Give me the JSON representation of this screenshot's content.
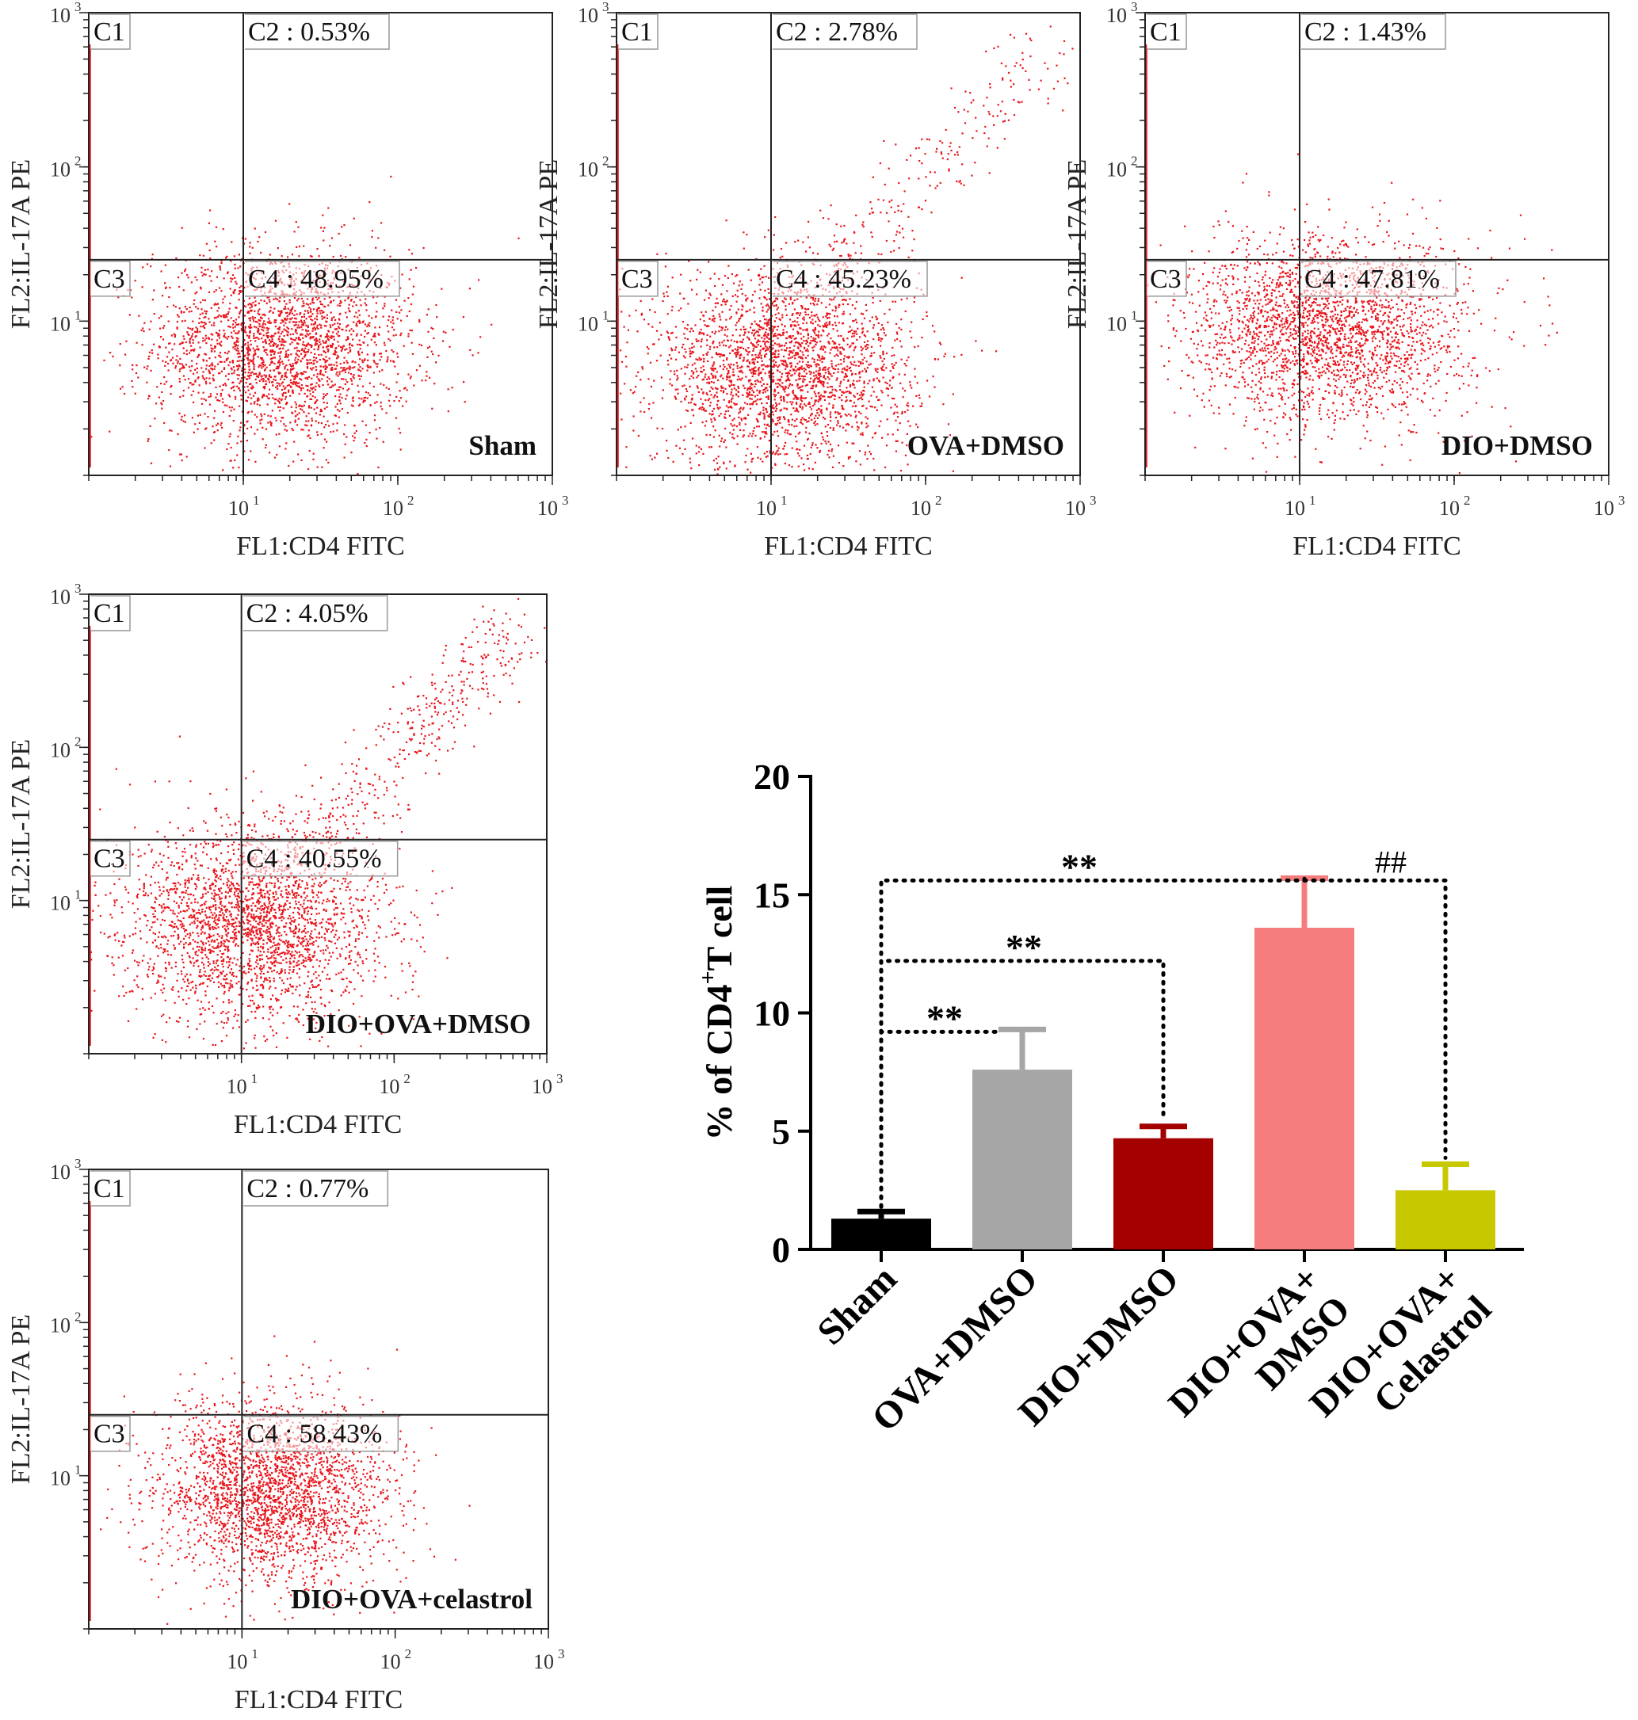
{
  "flow_panels": [
    {
      "name": "panel-sham",
      "group_label": "Sham",
      "quadrants": {
        "c1": "C1",
        "c2": "C2 : 0.53%",
        "c3": "C3",
        "c4": "C4 : 48.95%"
      },
      "x_label": "FL1:CD4 FITC",
      "y_label": "FL2:IL-17A PE",
      "tick_labels": {
        "t1": "10",
        "t2": "10",
        "t3": "10",
        "e1": "1",
        "e2": "2",
        "e3": "3"
      },
      "x_gate": 10,
      "y_gate": 25,
      "cloud": {
        "cx": 18,
        "cy": 7,
        "spread_x": 0.42,
        "spread_y": 0.32,
        "n": 2600
      },
      "diagonal": {
        "n": 0
      }
    },
    {
      "name": "panel-ova-dmso",
      "group_label": "OVA+DMSO",
      "quadrants": {
        "c1": "C1",
        "c2": "C2 : 2.78%",
        "c3": "C3",
        "c4": "C4 : 45.23%"
      },
      "x_label": "FL1:CD4 FITC",
      "y_label": "FL2:IL-17A PE",
      "tick_labels": {
        "t1": "10",
        "t2": "10",
        "t3": "10",
        "e1": "1",
        "e2": "2",
        "e3": "3"
      },
      "x_gate": 10,
      "y_gate": 25,
      "cloud": {
        "cx": 12,
        "cy": 5,
        "spread_x": 0.42,
        "spread_y": 0.32,
        "n": 2600
      },
      "diagonal": {
        "n": 260
      }
    },
    {
      "name": "panel-dio-dmso",
      "group_label": "DIO+DMSO",
      "quadrants": {
        "c1": "C1",
        "c2": "C2 : 1.43%",
        "c3": "C3",
        "c4": "C4 : 47.81%"
      },
      "x_label": "FL1:CD4 FITC",
      "y_label": "FL2:IL-17A PE",
      "tick_labels": {
        "t1": "10",
        "t2": "10",
        "t3": "10",
        "e1": "1",
        "e2": "2",
        "e3": "3"
      },
      "x_gate": 10,
      "y_gate": 25,
      "cloud": {
        "cx": 15,
        "cy": 9,
        "spread_x": 0.45,
        "spread_y": 0.3,
        "n": 2600
      },
      "diagonal": {
        "n": 0
      }
    },
    {
      "name": "panel-dio-ova-dmso",
      "group_label": "DIO+OVA+DMSO",
      "quadrants": {
        "c1": "C1",
        "c2": "C2 : 4.05%",
        "c3": "C3",
        "c4": "C4 : 40.55%"
      },
      "x_label": "FL1:CD4 FITC",
      "y_label": "FL2:IL-17A PE",
      "tick_labels": {
        "t1": "10",
        "t2": "10",
        "t3": "10",
        "e1": "1",
        "e2": "2",
        "e3": "3"
      },
      "x_gate": 10,
      "y_gate": 25,
      "cloud": {
        "cx": 12,
        "cy": 7,
        "spread_x": 0.42,
        "spread_y": 0.32,
        "n": 2600
      },
      "diagonal": {
        "n": 420
      }
    },
    {
      "name": "panel-dio-ova-celastrol",
      "group_label": "DIO+OVA+celastrol",
      "quadrants": {
        "c1": "C1",
        "c2": "C2 : 0.77%",
        "c3": "C3",
        "c4": "C4 : 58.43%"
      },
      "x_label": "FL1:CD4 FITC",
      "y_label": "FL2:IL-17A PE",
      "tick_labels": {
        "t1": "10",
        "t2": "10",
        "t3": "10",
        "e1": "1",
        "e2": "2",
        "e3": "3"
      },
      "x_gate": 10,
      "y_gate": 25,
      "cloud": {
        "cx": 16,
        "cy": 8,
        "spread_x": 0.38,
        "spread_y": 0.3,
        "n": 2600
      },
      "diagonal": {
        "n": 0
      }
    }
  ],
  "chart_data": {
    "type": "bar",
    "categories": [
      "Sham",
      "OVA+DMSO",
      "DIO+DMSO",
      "DIO+OVA+DMSO",
      "DIO+OVA+Celastrol"
    ],
    "category_lines": [
      [
        "Sham"
      ],
      [
        "OVA+DMSO"
      ],
      [
        "DIO+DMSO"
      ],
      [
        "DIO+OVA+",
        "DMSO"
      ],
      [
        "DIO+OVA+",
        "Celastrol"
      ]
    ],
    "values": [
      1.3,
      7.6,
      4.7,
      13.6,
      2.5
    ],
    "errors": [
      0.3,
      1.7,
      0.5,
      2.1,
      1.1
    ],
    "colors": [
      "#000000",
      "#a6a6a6",
      "#a50000",
      "#f47c7c",
      "#c8c800"
    ],
    "ylabel_main": "% of CD4",
    "ylabel_sup": "+",
    "ylabel_tail": "T cell",
    "ylim": [
      0,
      20
    ],
    "yticks": [
      0,
      5,
      10,
      15,
      20
    ],
    "ytick_labels": [
      "0",
      "5",
      "10",
      "15",
      "20"
    ],
    "annotations": [
      {
        "text": "**",
        "from": 0,
        "to": 1,
        "y": 9.2
      },
      {
        "text": "**",
        "from": 0,
        "to": 2,
        "y": 12.2
      },
      {
        "text": "**",
        "from": 0,
        "to": 3,
        "y": 15.6
      },
      {
        "text": "##",
        "from": 3,
        "to": 4,
        "y": 15.6
      }
    ]
  }
}
